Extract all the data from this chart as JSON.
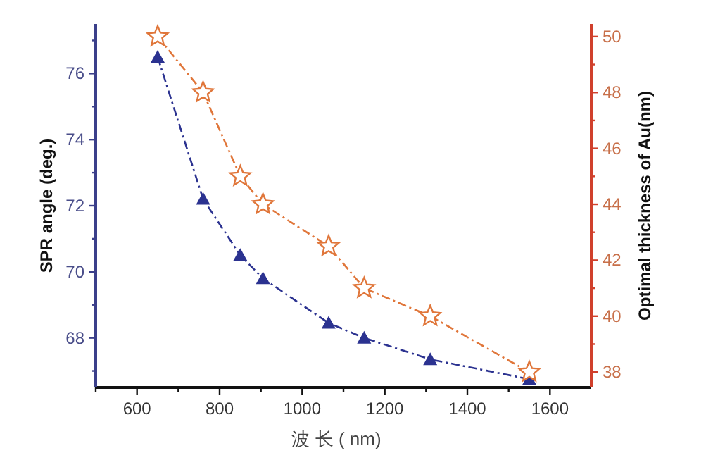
{
  "chart_data": {
    "type": "line",
    "xlabel": "波 长 ( nm)",
    "ylabel": "SPR angle (deg.)",
    "y2label": "Optimal thickness of Au(nm)",
    "x": [
      650,
      760,
      850,
      905,
      1064,
      1150,
      1310,
      1550
    ],
    "series": [
      {
        "color": "#2b3290",
        "marker": "triangle",
        "line_style": "dashdot",
        "values": [
          76.5,
          72.2,
          70.5,
          69.8,
          68.45,
          68.0,
          67.35,
          66.75
        ]
      },
      {
        "color": "#e0763a",
        "marker": "star",
        "line_style": "dashdot",
        "axis": "y2",
        "values": [
          50,
          48,
          45,
          44,
          42.5,
          41,
          40,
          38
        ]
      }
    ],
    "xlim": [
      500,
      1700
    ],
    "xticks": [
      {
        "value": 500,
        "label": null
      },
      600,
      {
        "value": 700,
        "label": null
      },
      800,
      {
        "value": 900,
        "label": null
      },
      1000,
      {
        "value": 1100,
        "label": null
      },
      1200,
      {
        "value": 1300,
        "label": null
      },
      1400,
      {
        "value": 1500,
        "label": null
      },
      1600
    ],
    "ylim": [
      66.5,
      77.5
    ],
    "yticks": [
      {
        "value": 67,
        "label": null
      },
      68,
      {
        "value": 69,
        "label": null
      },
      70,
      {
        "value": 71,
        "label": null
      },
      72,
      {
        "value": 73,
        "label": null
      },
      74,
      {
        "value": 75,
        "label": null
      },
      76,
      {
        "value": 77,
        "label": null
      }
    ],
    "y2lim": [
      37.45,
      50.45
    ],
    "y2ticks": [
      38,
      {
        "value": 39,
        "label": null
      },
      40,
      {
        "value": 41,
        "label": null
      },
      42,
      {
        "value": 43,
        "label": null
      },
      44,
      {
        "value": 45,
        "label": null
      },
      46,
      {
        "value": 47,
        "label": null
      },
      48,
      {
        "value": 49,
        "label": null
      },
      50
    ]
  }
}
